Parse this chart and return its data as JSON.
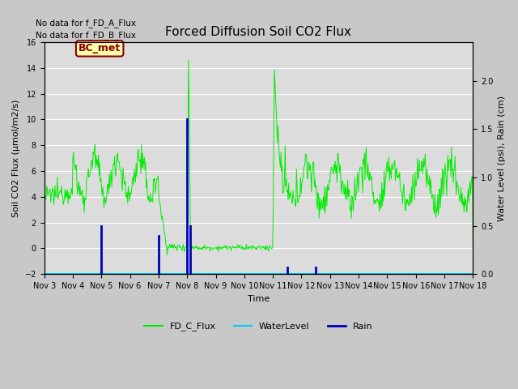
{
  "title": "Forced Diffusion Soil CO2 Flux",
  "xlabel": "Time",
  "ylabel_left": "Soil CO2 Flux (μmol/m2/s)",
  "ylabel_right": "Water Level (psi), Rain (cm)",
  "no_data_text_1": "No data for f_FD_A_Flux",
  "no_data_text_2": "No data for f_FD_B_Flux",
  "bc_met_label": "BC_met",
  "ylim_left": [
    -2,
    16
  ],
  "ylim_right": [
    0.0,
    2.4
  ],
  "xtick_labels": [
    "Nov 3",
    "Nov 4",
    "Nov 5",
    "Nov 6",
    "Nov 7",
    "Nov 8",
    "Nov 9",
    "Nov 10",
    "Nov 11",
    "Nov 12",
    "Nov 13",
    "Nov 14",
    "Nov 15",
    "Nov 16",
    "Nov 17",
    "Nov 18"
  ],
  "fig_bg_color": "#c8c8c8",
  "plot_bg_color": "#dcdcdc",
  "grid_color": "#ffffff",
  "fd_c_flux_color": "#00ee00",
  "water_level_color": "#00ccff",
  "rain_color": "#0000bb",
  "title_fontsize": 11,
  "axis_fontsize": 8,
  "tick_fontsize": 7
}
